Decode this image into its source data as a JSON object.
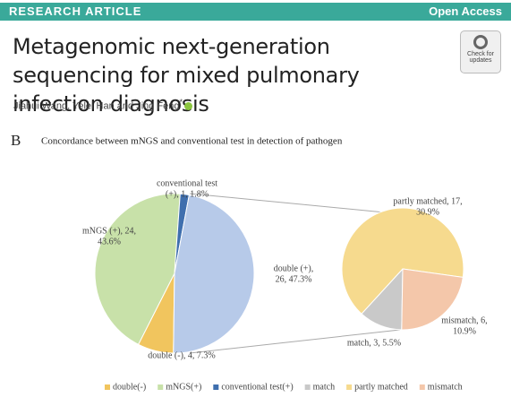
{
  "header": {
    "banner_left": "RESEARCH ARTICLE",
    "banner_right": "Open Access",
    "title": "Metagenomic next-generation sequencing for mixed pulmonary infection diagnosis",
    "authors": "Jiahui Wang, Yelei Han and Jing Feng",
    "author_mark": "*",
    "badge": "Check for updates"
  },
  "figure": {
    "label": "B"
  },
  "chart_data": {
    "type": "pie-of-pie",
    "title": "Concordance between mNGS and conventional test in detection of pathogen",
    "pies": [
      {
        "slices": [
          {
            "name": "double(-)",
            "value": 4,
            "label": [
              "double (-), 4, 7.3%"
            ],
            "color": "#f1c55e"
          },
          {
            "name": "mNGS(+)",
            "value": 24,
            "label": [
              "mNGS (+), 24,",
              "43.6%"
            ],
            "color": "#c8e1a9"
          },
          {
            "name": "conventional test(+)",
            "value": 1,
            "label": [
              "conventional test",
              "(+), 1, 1.8%"
            ],
            "color": "#3f6fae"
          },
          {
            "value": 26,
            "label": [
              "double (+),",
              "26, 47.3%"
            ],
            "color": "#b7cae9"
          }
        ]
      },
      {
        "slices": [
          {
            "name": "match",
            "value": 3,
            "label": [
              "match, 3, 5.5%"
            ],
            "color": "#c9c9c9"
          },
          {
            "name": "partly matched",
            "value": 17,
            "label": [
              "partly matched, 17,",
              "30.9%"
            ],
            "color": "#f6da8e"
          },
          {
            "name": "mismatch",
            "value": 6,
            "label": [
              "mismatch, 6,",
              "10.9%"
            ],
            "color": "#f4c7aa"
          }
        ]
      }
    ]
  }
}
